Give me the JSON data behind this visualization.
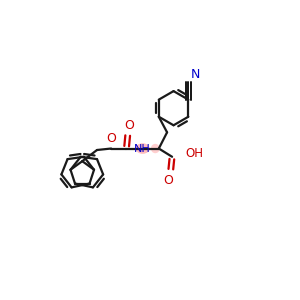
{
  "bg_color": "#ffffff",
  "bond_color": "#1a1a1a",
  "bond_lw": 1.6,
  "nh_color": "#0000cc",
  "o_color": "#cc0000",
  "n_cyan_color": "#0000cc",
  "highlight_color": "#ff8888",
  "highlight_alpha": 0.55,
  "xlim": [
    0,
    10
  ],
  "ylim": [
    0,
    10
  ]
}
